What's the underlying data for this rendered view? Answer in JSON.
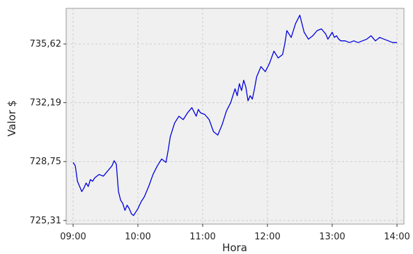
{
  "chart_data": {
    "type": "line",
    "xlabel": "Hora",
    "ylabel": "Valor $",
    "x_ticks": [
      "09:00",
      "10:00",
      "11:00",
      "12:00",
      "13:00",
      "14:00"
    ],
    "y_ticks": [
      "725,31",
      "728,75",
      "732,19",
      "735,62"
    ],
    "xlim": [
      "09:00",
      "14:00"
    ],
    "ylim": [
      725.1,
      737.7
    ],
    "grid": true,
    "legend": "none",
    "colors": {
      "line": "#0000dd",
      "plot_background": "#f0f0f0",
      "grid": "#cccccc"
    },
    "series": [
      {
        "x": [
          "09:00",
          "09:02",
          "09:04",
          "09:06",
          "09:08",
          "09:10",
          "09:12",
          "09:14",
          "09:16",
          "09:18",
          "09:20",
          "09:24",
          "09:28",
          "09:32",
          "09:36",
          "09:38",
          "09:40",
          "09:42",
          "09:44",
          "09:46",
          "09:48",
          "09:50",
          "09:52",
          "09:54",
          "09:56",
          "09:58",
          "10:00",
          "10:03",
          "10:06",
          "10:10",
          "10:14",
          "10:18",
          "10:22",
          "10:26",
          "10:28",
          "10:30",
          "10:34",
          "10:38",
          "10:42",
          "10:46",
          "10:50",
          "10:54",
          "10:56",
          "10:58",
          "11:02",
          "11:06",
          "11:10",
          "11:14",
          "11:18",
          "11:22",
          "11:26",
          "11:30",
          "11:32",
          "11:34",
          "11:36",
          "11:38",
          "11:40",
          "11:42",
          "11:44",
          "11:46",
          "11:48",
          "11:50",
          "11:54",
          "11:58",
          "12:02",
          "12:06",
          "12:10",
          "12:14",
          "12:16",
          "12:18",
          "12:22",
          "12:26",
          "12:30",
          "12:34",
          "12:38",
          "12:42",
          "12:46",
          "12:50",
          "12:54",
          "12:56",
          "12:58",
          "13:00",
          "13:02",
          "13:04",
          "13:06",
          "13:08",
          "13:12",
          "13:16",
          "13:20",
          "13:24",
          "13:28",
          "13:32",
          "13:36",
          "13:40",
          "13:44",
          "13:48",
          "13:52",
          "13:56",
          "14:00"
        ],
        "values": [
          728.7,
          728.5,
          727.6,
          727.3,
          727.0,
          727.2,
          727.5,
          727.3,
          727.7,
          727.6,
          727.8,
          728.0,
          727.9,
          728.2,
          728.5,
          728.8,
          728.6,
          727.0,
          726.5,
          726.3,
          725.9,
          726.2,
          726.0,
          725.7,
          725.6,
          725.8,
          726.0,
          726.4,
          726.7,
          727.3,
          728.0,
          728.5,
          728.9,
          728.7,
          729.4,
          730.2,
          731.0,
          731.4,
          731.2,
          731.6,
          731.9,
          731.4,
          731.8,
          731.6,
          731.5,
          731.2,
          730.5,
          730.3,
          730.9,
          731.7,
          732.2,
          733.0,
          732.6,
          733.3,
          732.9,
          733.5,
          733.1,
          732.3,
          732.6,
          732.4,
          733.0,
          733.7,
          734.3,
          734.0,
          734.5,
          735.2,
          734.8,
          735.0,
          735.6,
          736.4,
          736.0,
          736.8,
          737.3,
          736.3,
          735.9,
          736.1,
          736.4,
          736.5,
          736.2,
          735.9,
          736.1,
          736.3,
          736.0,
          736.1,
          735.9,
          735.8,
          735.8,
          735.7,
          735.8,
          735.7,
          735.8,
          735.9,
          736.1,
          735.8,
          736.0,
          735.9,
          735.8,
          735.7,
          735.7
        ]
      }
    ]
  }
}
